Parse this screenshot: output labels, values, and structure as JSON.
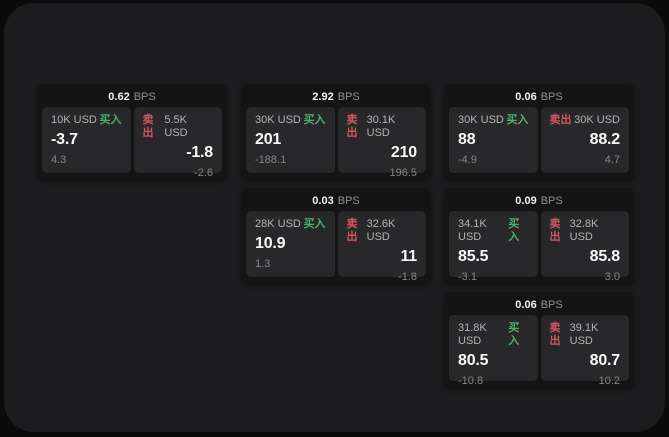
{
  "labels": {
    "buy": "买入",
    "sell": "卖出",
    "bps_unit": "BPS"
  },
  "colors": {
    "background": "#0a0a0a",
    "window_bg": "#1c1c1e",
    "card_bg": "#141415",
    "tile_bg": "#28282a",
    "buy_green": "#4fae6e",
    "sell_red": "#d25565"
  },
  "cards": [
    {
      "bps": "0.62",
      "buy": {
        "amount": "10K USD",
        "price": "-3.7",
        "pnl": "4.3"
      },
      "sell": {
        "amount": "5.5K USD",
        "price": "-1.8",
        "pnl": "-2.6"
      }
    },
    {
      "bps": "2.92",
      "buy": {
        "amount": "30K USD",
        "price": "201",
        "pnl": "-188.1"
      },
      "sell": {
        "amount": "30.1K USD",
        "price": "210",
        "pnl": "196.5"
      }
    },
    {
      "bps": "0.06",
      "buy": {
        "amount": "30K USD",
        "price": "88",
        "pnl": "-4.9"
      },
      "sell": {
        "amount": "30K USD",
        "price": "88.2",
        "pnl": "4.7"
      }
    },
    {
      "bps": "0.03",
      "buy": {
        "amount": "28K USD",
        "price": "10.9",
        "pnl": "1.3"
      },
      "sell": {
        "amount": "32.6K USD",
        "price": "11",
        "pnl": "-1.8"
      }
    },
    {
      "bps": "0.09",
      "buy": {
        "amount": "34.1K USD",
        "price": "85.5",
        "pnl": "-3.1"
      },
      "sell": {
        "amount": "32.8K USD",
        "price": "85.8",
        "pnl": "3.0"
      }
    },
    {
      "bps": "0.06",
      "buy": {
        "amount": "31.8K USD",
        "price": "80.5",
        "pnl": "-10.8"
      },
      "sell": {
        "amount": "39.1K USD",
        "price": "80.7",
        "pnl": "10.2"
      }
    }
  ]
}
